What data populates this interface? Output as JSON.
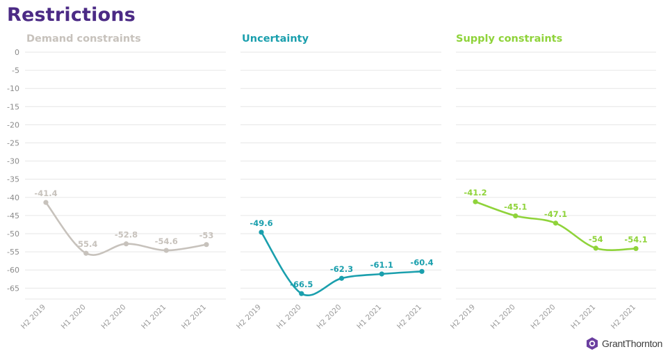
{
  "title": "Restrictions",
  "brand": {
    "name": "GrantThornton",
    "color": "#6b3fa0"
  },
  "chart_data": [
    {
      "type": "line",
      "title": "Demand constraints",
      "color": "#c7c2bc",
      "categories": [
        "H2 2019",
        "H1 2020",
        "H2 2020",
        "H1 2021",
        "H2 2021"
      ],
      "values": [
        -41.4,
        -55.4,
        -52.8,
        -54.6,
        -53
      ],
      "data_labels": [
        "-41.4",
        "-55.4",
        "-52.8",
        "-54.6",
        "-53"
      ],
      "y_ticks": [
        "0",
        "-5",
        "-10",
        "-15",
        "-20",
        "-25",
        "-30",
        "-35",
        "-40",
        "-45",
        "-50",
        "-55",
        "-60",
        "-65"
      ],
      "ylim": [
        -68,
        0
      ],
      "grid": true,
      "smooth": true
    },
    {
      "type": "line",
      "title": "Uncertainty",
      "color": "#1a9fad",
      "categories": [
        "H2 2019",
        "H1 2020",
        "H2 2020",
        "H1 2021",
        "H2 2021"
      ],
      "values": [
        -49.6,
        -66.5,
        -62.3,
        -61.1,
        -60.4
      ],
      "data_labels": [
        "-49.6",
        "-66.5",
        "-62.3",
        "-61.1",
        "-60.4"
      ],
      "ylim": [
        -68,
        0
      ],
      "grid": true,
      "smooth": true
    },
    {
      "type": "line",
      "title": "Supply constraints",
      "color": "#8fd33a",
      "categories": [
        "H2 2019",
        "H1 2020",
        "H2 2020",
        "H1 2021",
        "H2 2021"
      ],
      "values": [
        -41.2,
        -45.1,
        -47.1,
        -54,
        -54.1
      ],
      "data_labels": [
        "-41.2",
        "-45.1",
        "-47.1",
        "-54",
        "-54.1"
      ],
      "ylim": [
        -68,
        0
      ],
      "grid": true,
      "smooth": true
    }
  ]
}
